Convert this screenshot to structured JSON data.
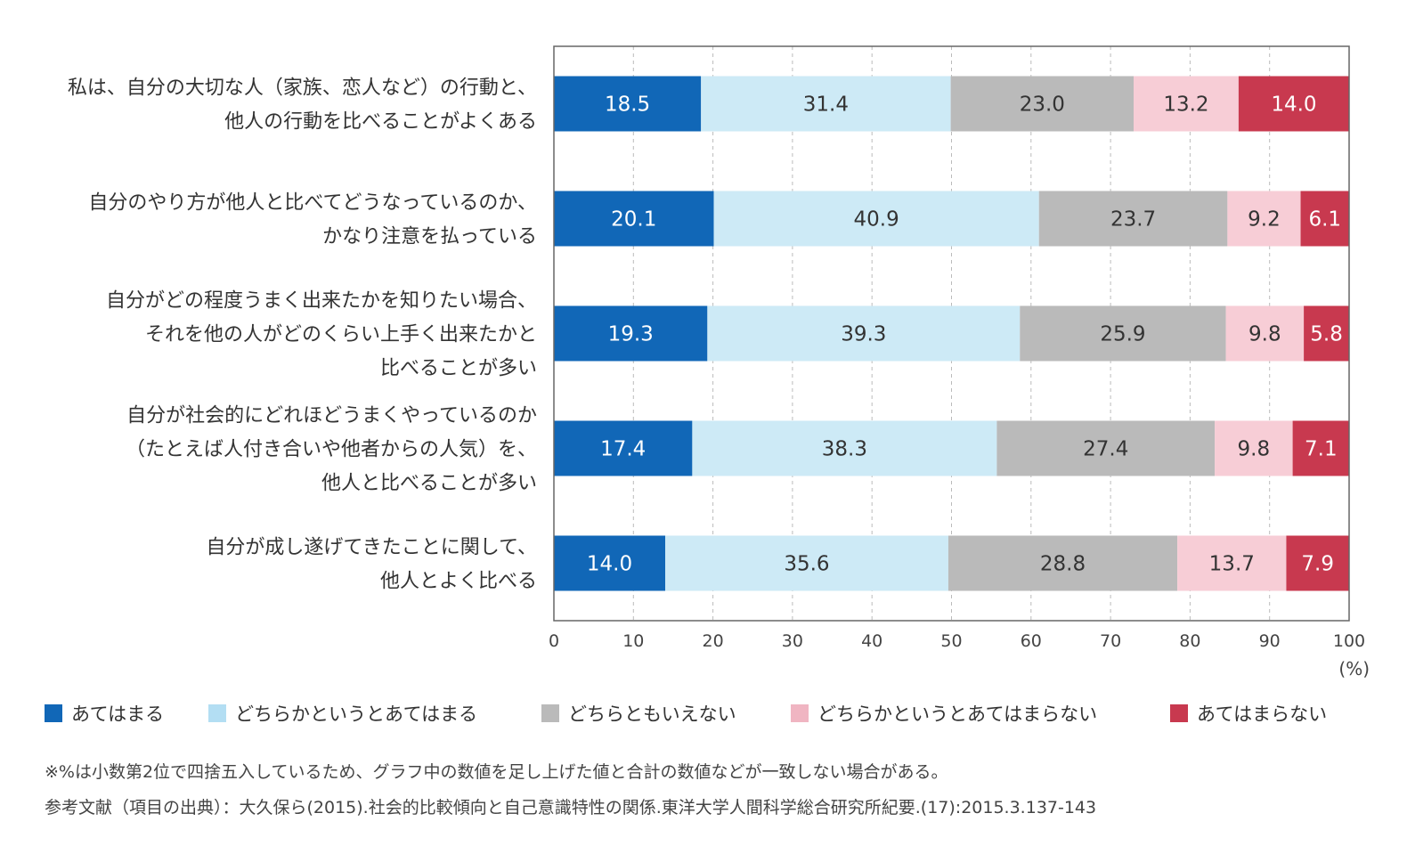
{
  "chart_data": {
    "type": "bar",
    "orientation": "horizontal",
    "stacked": true,
    "categories": [
      [
        "私は、自分の大切な人（家族、恋人など）の行動と、",
        "他人の行動を比べることがよくある"
      ],
      [
        "自分のやり方が他人と比べてどうなっているのか、",
        "かなり注意を払っている"
      ],
      [
        "自分がどの程度うまく出来たかを知りたい場合、",
        "それを他の人がどのくらい上手く出来たかと",
        "比べることが多い"
      ],
      [
        "自分が社会的にどれほどうまくやっているのか",
        "（たとえば人付き合いや他者からの人気）を、",
        "他人と比べることが多い"
      ],
      [
        "自分が成し遂げてきたことに関して、",
        "他人とよく比べる"
      ]
    ],
    "series": [
      {
        "name": "あてはまる",
        "color": "#1167b7",
        "label_color": "#ffffff",
        "values": [
          18.5,
          20.1,
          19.3,
          17.4,
          14.0
        ]
      },
      {
        "name": "どちらかというとあてはまる",
        "color": "#cdeaf6",
        "legend_color": "#b3def3",
        "label_color": "#333333",
        "values": [
          31.4,
          40.9,
          39.3,
          38.3,
          35.6
        ]
      },
      {
        "name": "どちらともいえない",
        "color": "#bababa",
        "label_color": "#333333",
        "values": [
          23.0,
          23.7,
          25.9,
          27.4,
          28.8
        ]
      },
      {
        "name": "どちらかというとあてはまらない",
        "color": "#f7cdd6",
        "legend_color": "#f0b5c2",
        "label_color": "#333333",
        "values": [
          13.2,
          9.2,
          9.8,
          9.8,
          13.7
        ]
      },
      {
        "name": "あてはまらない",
        "color": "#c8394f",
        "label_color": "#ffffff",
        "values": [
          14.0,
          6.1,
          5.8,
          7.1,
          7.9
        ]
      }
    ],
    "xlim": [
      0,
      100
    ],
    "xticks": [
      0,
      10,
      20,
      30,
      40,
      50,
      60,
      70,
      80,
      90,
      100
    ],
    "xunit": "(%)",
    "grid": "vertical dashed",
    "legend_position": "bottom"
  },
  "footnotes": [
    "※%は小数第2位で四捨五入しているため、グラフ中の数値を足し上げた値と合計の数値などが一致しない場合がある。",
    "参考文献（項目の出典）：大久保ら(2015).社会的比較傾向と自己意識特性の関係.東洋大学人間科学総合研究所紀要.(17):2015.3.137-143"
  ]
}
